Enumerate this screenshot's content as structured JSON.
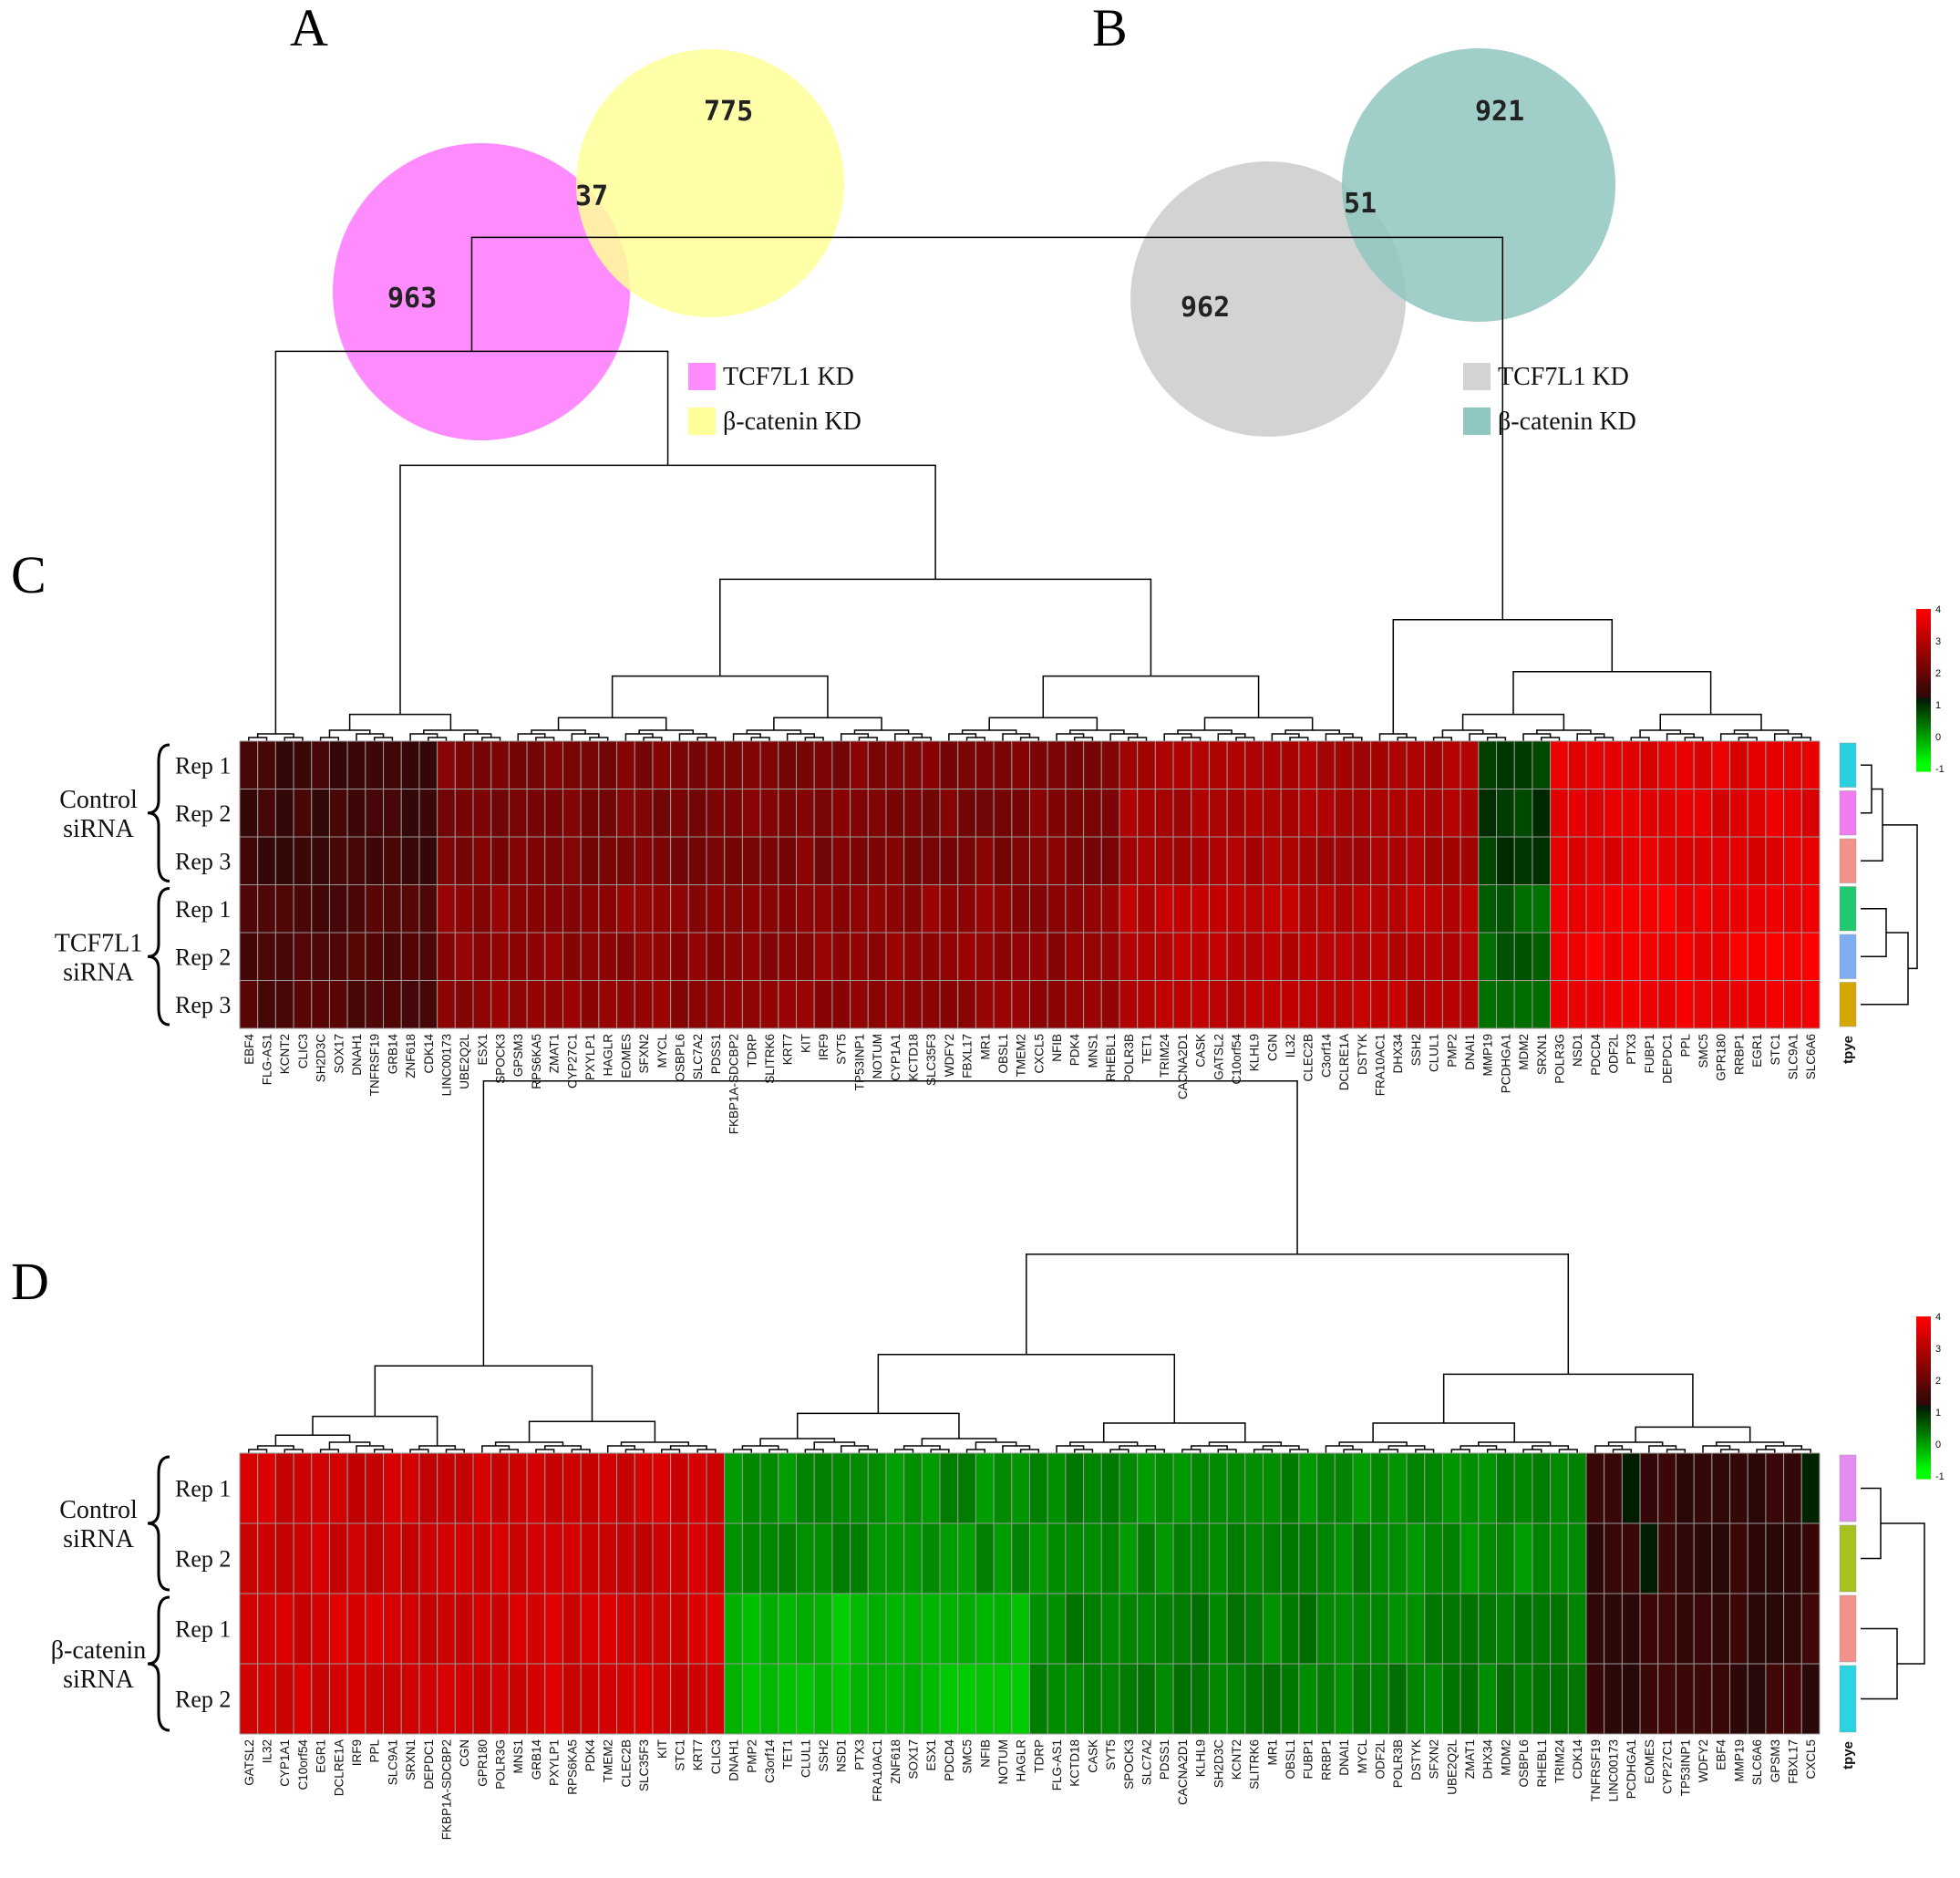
{
  "panels": {
    "a": "A",
    "b": "B",
    "c": "C",
    "d": "D"
  },
  "chart_data": [
    {
      "type": "venn",
      "panel": "A",
      "sets": [
        {
          "name": "TCF7L1 KD",
          "only": 963,
          "color": "#FF8CFF"
        },
        {
          "name": "β-catenin KD",
          "only": 775,
          "color": "#FFFF99"
        }
      ],
      "overlap": 37
    },
    {
      "type": "venn",
      "panel": "B",
      "sets": [
        {
          "name": "TCF7L1 KD",
          "only": 962,
          "color": "#D3D3D3"
        },
        {
          "name": "β-catenin KD",
          "only": 921,
          "color": "#8FC6BF"
        }
      ],
      "overlap": 51
    },
    {
      "type": "heatmap",
      "panel": "C",
      "colorscale": {
        "ticks": [
          "4",
          "3",
          "2",
          "1",
          "0",
          "-1"
        ],
        "low": "#00FF00",
        "mid": "#000000",
        "high": "#FF0000"
      },
      "groups": [
        {
          "label": [
            "Control",
            "siRNA"
          ],
          "rows": [
            "Rep 1",
            "Rep 2",
            "Rep 3"
          ]
        },
        {
          "label": [
            "TCF7L1",
            "siRNA"
          ],
          "rows": [
            "Rep 1",
            "Rep 2",
            "Rep 3"
          ]
        }
      ],
      "type_label": "tpye",
      "type_colors": [
        "#2ACFE2",
        "#F07CF0",
        "#F2928A",
        "#22C870",
        "#7EAEF0",
        "#D4A800"
      ],
      "genes": [
        "EBF4",
        "FLG-AS1",
        "KCNT2",
        "CLIC3",
        "SH2D3C",
        "SOX17",
        "DNAH1",
        "TNFRSF19",
        "GRB14",
        "ZNF618",
        "CDK14",
        "LINC00173",
        "UBE2Q2L",
        "ESX1",
        "SPOCK3",
        "GPSM3",
        "RPS6KA5",
        "ZMAT1",
        "CYP27C1",
        "PXYLP1",
        "HAGLR",
        "EOMES",
        "SFXN2",
        "MYCL",
        "OSBPL6",
        "SLC7A2",
        "PDSS1",
        "FKBP1A-SDCBP2",
        "TDRP",
        "SLITRK6",
        "KRT7",
        "KIT",
        "IRF9",
        "SYT5",
        "TP53INP1",
        "NOTUM",
        "CYP1A1",
        "KCTD18",
        "SLC35F3",
        "WDFY2",
        "FBXL17",
        "MR1",
        "OBSL1",
        "TMEM2",
        "CXCL5",
        "NFIB",
        "PDK4",
        "MNS1",
        "RHEBL1",
        "POLR3B",
        "TET1",
        "TRIM24",
        "CACNA2D1",
        "CASK",
        "GATSL2",
        "C10orf54",
        "KLHL9",
        "CGN",
        "IL32",
        "CLEC2B",
        "C3orf14",
        "DCLRE1A",
        "DSTYK",
        "FRA10AC1",
        "DHX34",
        "SSH2",
        "CLUL1",
        "PMP2",
        "DNAI1",
        "MMP19",
        "PCDHGA1",
        "MDM2",
        "SRXN1",
        "POLR3G",
        "NSD1",
        "PDCD4",
        "ODF2L",
        "PTX3",
        "FUBP1",
        "DEPDC1",
        "PPL",
        "SMC5",
        "GPR180",
        "RRBP1",
        "EGR1",
        "STC1",
        "SLC9A1",
        "SLC6A6"
      ]
    },
    {
      "type": "heatmap",
      "panel": "D",
      "colorscale": {
        "ticks": [
          "4",
          "3",
          "2",
          "1",
          "0",
          "-1"
        ],
        "low": "#00FF00",
        "mid": "#000000",
        "high": "#FF0000"
      },
      "groups": [
        {
          "label": [
            "Control",
            "siRNA"
          ],
          "rows": [
            "Rep 1",
            "Rep 2"
          ]
        },
        {
          "label": [
            "β-catenin",
            "siRNA"
          ],
          "rows": [
            "Rep 1",
            "Rep 2"
          ]
        }
      ],
      "type_label": "tpye",
      "type_colors": [
        "#E48CF0",
        "#A8C020",
        "#F2928A",
        "#2AD4E2"
      ],
      "genes": [
        "GATSL2",
        "IL32",
        "CYP1A1",
        "C10orf54",
        "EGR1",
        "DCLRE1A",
        "IRF9",
        "PPL",
        "SLC9A1",
        "SRXN1",
        "DEPDC1",
        "FKBP1A-SDCBP2",
        "CGN",
        "GPR180",
        "POLR3G",
        "MNS1",
        "GRB14",
        "PXYLP1",
        "RPS6KA5",
        "PDK4",
        "TMEM2",
        "CLEC2B",
        "SLC35F3",
        "KIT",
        "STC1",
        "KRT7",
        "CLIC3",
        "DNAH1",
        "PMP2",
        "C3orf14",
        "TET1",
        "CLUL1",
        "SSH2",
        "NSD1",
        "PTX3",
        "FRA10AC1",
        "ZNF618",
        "SOX17",
        "ESX1",
        "PDCD4",
        "SMC5",
        "NFIB",
        "NOTUM",
        "HAGLR",
        "TDRP",
        "FLG-AS1",
        "KCTD18",
        "CASK",
        "SYT5",
        "SPOCK3",
        "SLC7A2",
        "PDSS1",
        "CACNA2D1",
        "KLHL9",
        "SH2D3C",
        "KCNT2",
        "SLITRK6",
        "MR1",
        "OBSL1",
        "FUBP1",
        "RRBP1",
        "DNAI1",
        "MYCL",
        "ODF2L",
        "POLR3B",
        "DSTYK",
        "SFXN2",
        "UBE2Q2L",
        "ZMAT1",
        "DHX34",
        "MDM2",
        "OSBPL6",
        "RHEBL1",
        "TRIM24",
        "CDK14",
        "TNFRSF19",
        "LINC00173",
        "PCDHGA1",
        "EOMES",
        "CYP27C1",
        "TP53INP1",
        "WDFY2",
        "EBF4",
        "MMP19",
        "SLC6A6",
        "GPSM3",
        "FBXL17",
        "CXCL5"
      ]
    }
  ]
}
